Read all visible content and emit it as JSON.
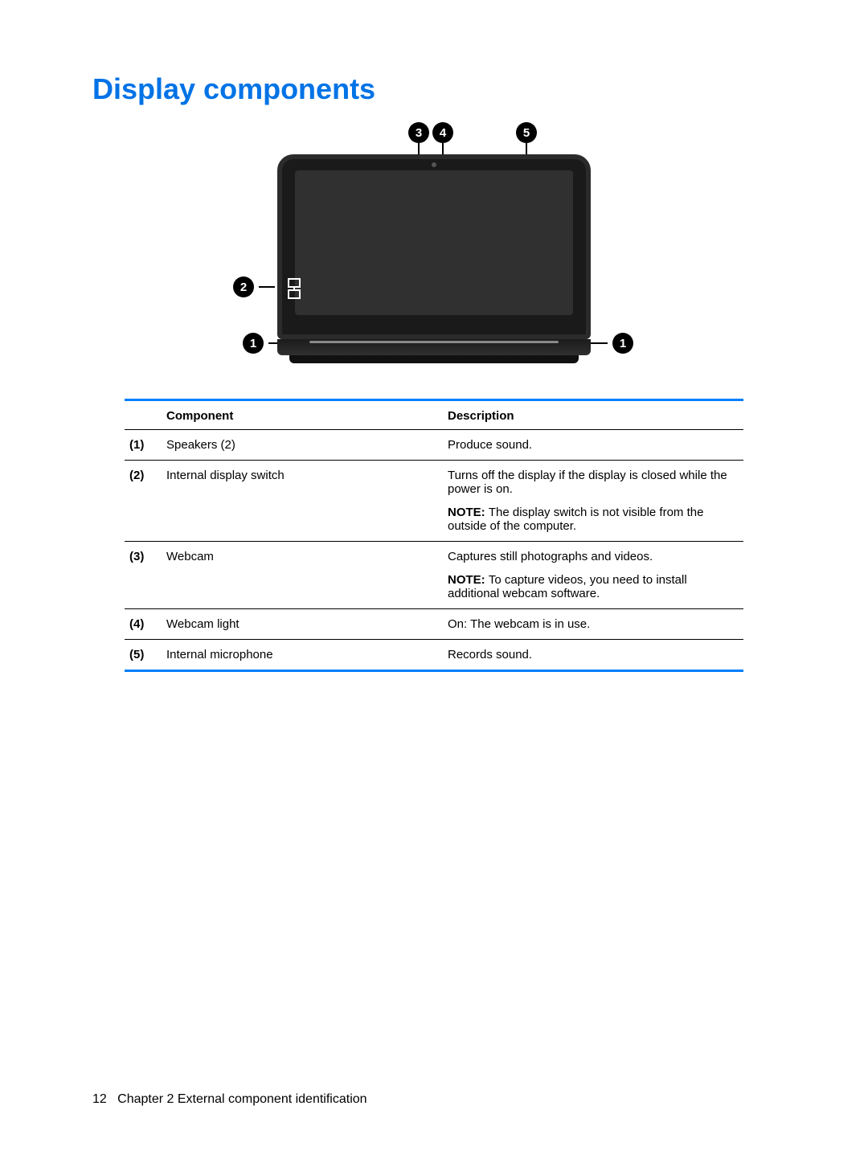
{
  "heading": "Display components",
  "callouts": {
    "c1": "1",
    "c2": "2",
    "c3": "3",
    "c4": "4",
    "c5": "5"
  },
  "table": {
    "header": {
      "component": "Component",
      "description": "Description"
    },
    "rows": [
      {
        "num": "(1)",
        "component": "Speakers (2)",
        "description": [
          {
            "text": "Produce sound."
          }
        ]
      },
      {
        "num": "(2)",
        "component": "Internal display switch",
        "description": [
          {
            "text": "Turns off the display if the display is closed while the power is on."
          },
          {
            "note": "NOTE:",
            "text": "The display switch is not visible from the outside of the computer."
          }
        ]
      },
      {
        "num": "(3)",
        "component": "Webcam",
        "description": [
          {
            "text": "Captures still photographs and videos."
          },
          {
            "note": "NOTE:",
            "text": "To capture videos, you need to install additional webcam software."
          }
        ]
      },
      {
        "num": "(4)",
        "component": "Webcam light",
        "description": [
          {
            "text": "On: The webcam is in use."
          }
        ]
      },
      {
        "num": "(5)",
        "component": "Internal microphone",
        "description": [
          {
            "text": "Records sound."
          }
        ]
      }
    ]
  },
  "footer": {
    "page": "12",
    "chapter": "Chapter 2   External component identification"
  },
  "colors": {
    "accent": "#0073e6",
    "rule": "#007fff"
  }
}
